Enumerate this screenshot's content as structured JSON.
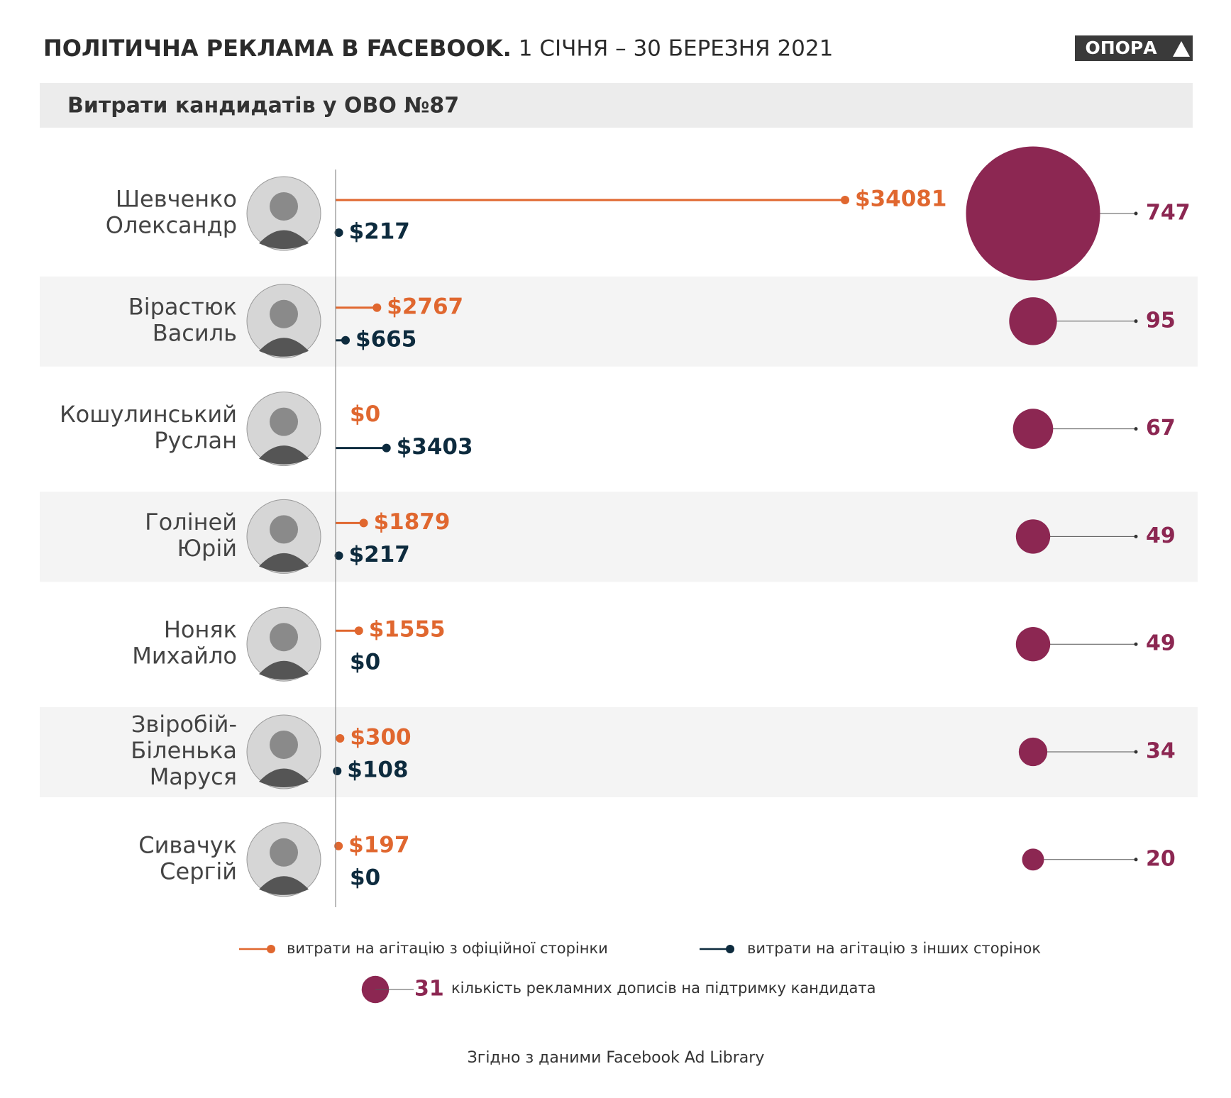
{
  "chart_data": {
    "type": "lollipop",
    "title": "ПОЛІТИЧНА РЕКЛАМА В FACEBOOK.",
    "subtitle": "1 СІЧНЯ – 30 БЕРЕЗНЯ 2021",
    "section_title": "Витрати кандидатів у ОВО №87",
    "logo": "ОПОРА",
    "source": "Згідно з даними Facebook Ad Library",
    "categories": [
      [
        "Шевченко",
        "Олександр"
      ],
      [
        "Вірастюк",
        "Василь"
      ],
      [
        "Кошулинський",
        "Руслан"
      ],
      [
        "Голіней",
        "Юрій"
      ],
      [
        "Ноняк",
        "Михайло"
      ],
      [
        "Звіробій-",
        "Біленька",
        "Маруся"
      ],
      [
        "Сивачук",
        "Сергій"
      ]
    ],
    "xlim": [
      0,
      34081
    ],
    "series": [
      {
        "name": "витрати на агітацію з офіційної сторінки",
        "color": "#e0672f",
        "values": [
          34081,
          2767,
          0,
          1879,
          1555,
          300,
          197
        ],
        "value_labels": [
          "$34081",
          "$2767",
          "$0",
          "$1879",
          "$1555",
          "$300",
          "$197"
        ]
      },
      {
        "name": "витрати на агітацію з інших сторінок",
        "color": "#0d2b3e",
        "values": [
          217,
          665,
          3403,
          217,
          0,
          108,
          0
        ],
        "value_labels": [
          "$217",
          "$665",
          "$3403",
          "$217",
          "$0",
          "$108",
          "$0"
        ]
      },
      {
        "name": "кількість рекламних дописів на підтримку кандидата",
        "color": "#8c2752",
        "values": [
          747,
          95,
          67,
          49,
          49,
          34,
          20
        ]
      }
    ],
    "size_legend_value": 31
  }
}
